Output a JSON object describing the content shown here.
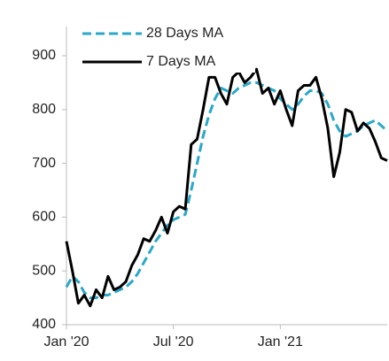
{
  "chart_data": {
    "type": "line",
    "categories": [
      "Jan '20",
      null,
      null,
      null,
      null,
      null,
      null,
      null,
      null,
      null,
      null,
      null,
      null,
      null,
      null,
      null,
      null,
      null,
      "Jul '20",
      null,
      null,
      null,
      null,
      null,
      null,
      null,
      null,
      null,
      null,
      null,
      null,
      null,
      null,
      null,
      null,
      null,
      "Jan '21",
      null,
      null,
      null,
      null,
      null,
      null,
      null,
      null,
      null,
      null,
      null,
      null,
      null,
      null,
      null,
      null,
      null,
      null
    ],
    "series": [
      {
        "name": "28 Days MA",
        "color": "#2aa8c8",
        "dashed": true,
        "values": [
          470,
          490,
          480,
          460,
          450,
          450,
          455,
          455,
          460,
          465,
          470,
          480,
          495,
          515,
          535,
          555,
          570,
          585,
          595,
          600,
          605,
          650,
          700,
          750,
          790,
          820,
          840,
          835,
          830,
          840,
          845,
          850,
          850,
          845,
          840,
          835,
          820,
          810,
          800,
          810,
          825,
          835,
          835,
          830,
          810,
          780,
          760,
          750,
          755,
          760,
          770,
          775,
          780,
          770,
          760
        ]
      },
      {
        "name": "7 Days MA",
        "color": "#000000",
        "dashed": false,
        "values": [
          555,
          500,
          440,
          455,
          435,
          465,
          450,
          490,
          465,
          470,
          480,
          510,
          530,
          560,
          555,
          575,
          600,
          570,
          610,
          620,
          615,
          735,
          745,
          800,
          860,
          860,
          830,
          810,
          860,
          870,
          850,
          860,
          875,
          830,
          840,
          810,
          835,
          800,
          770,
          835,
          845,
          845,
          860,
          820,
          765,
          675,
          720,
          800,
          795,
          760,
          775,
          765,
          740,
          710,
          705
        ]
      }
    ],
    "ylim": [
      400,
      900
    ],
    "yticks": [
      400,
      500,
      600,
      700,
      800,
      900
    ],
    "legend": "top-left"
  }
}
